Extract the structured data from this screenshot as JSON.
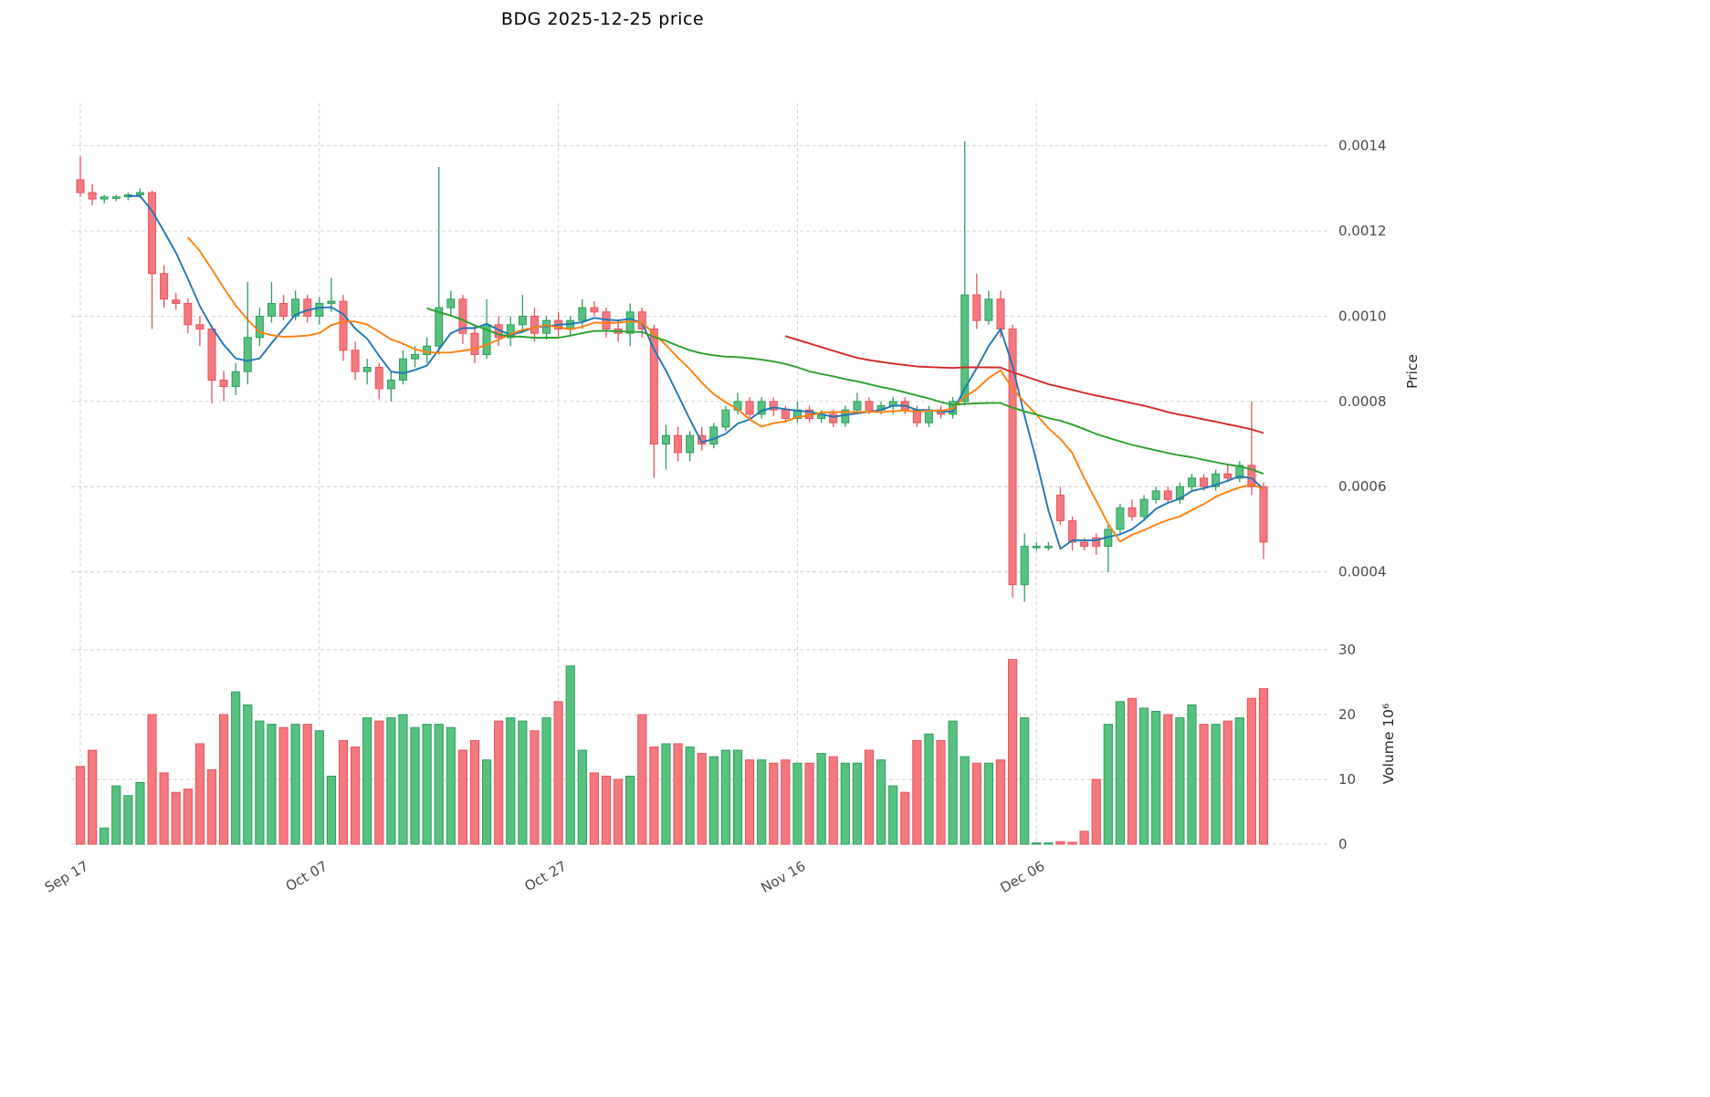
{
  "chart_data": {
    "type": "candlestick_volume",
    "title": "BDG  2025-12-25  price",
    "price_axis_label": "Price",
    "volume_axis_label": "Volume  10⁶",
    "volume_unit": 1000000,
    "price_ticks": [
      "0.0004",
      "0.0006",
      "0.0008",
      "0.0010",
      "0.0012",
      "0.0014"
    ],
    "price_tick_values": [
      0.0004,
      0.0006,
      0.0008,
      0.001,
      0.0012,
      0.0014
    ],
    "volume_ticks": [
      "0",
      "10",
      "20",
      "30"
    ],
    "volume_tick_values": [
      0,
      10,
      20,
      30
    ],
    "x_ticks": [
      "Sep 17",
      "Oct 07",
      "Oct 27",
      "Nov 16",
      "Dec 06"
    ],
    "x_tick_indices": [
      0,
      20,
      40,
      60,
      80
    ],
    "price_range": [
      0.00026,
      0.0015
    ],
    "volume_range": [
      0,
      30
    ],
    "grid": true,
    "colors": {
      "up_fill": "#57c17f",
      "up_edge": "#2f9d5f",
      "down_fill": "#f3797f",
      "down_edge": "#e8525e",
      "ma_fast": "#1f77b4",
      "ma_mid": "#ff7f0e",
      "ma_slow": "#2ca02c",
      "ma_long": "#d62728",
      "grid": "#cfcfcf",
      "tick_text": "#4a4a4a"
    },
    "moving_averages": [
      {
        "name": "MA5",
        "window": 5,
        "color": "#1f77b4"
      },
      {
        "name": "MA10",
        "window": 10,
        "color": "#ff7f0e"
      },
      {
        "name": "MA30",
        "window": 30,
        "color": "#2ca02c"
      },
      {
        "name": "MA60",
        "window": 60,
        "color": "#d62728"
      }
    ],
    "candles_format": [
      "date",
      "open",
      "high",
      "low",
      "close",
      "volume_millions"
    ],
    "candles": [
      [
        "2025-09-17",
        0.00132,
        0.001375,
        0.00128,
        0.00129,
        12.0
      ],
      [
        "2025-09-18",
        0.00129,
        0.00131,
        0.00126,
        0.001275,
        14.5
      ],
      [
        "2025-09-19",
        0.001275,
        0.001285,
        0.001265,
        0.00128,
        2.5
      ],
      [
        "2025-09-20",
        0.00128,
        0.001285,
        0.00127,
        0.00128,
        9.0
      ],
      [
        "2025-09-21",
        0.00128,
        0.00129,
        0.001272,
        0.001285,
        7.5
      ],
      [
        "2025-09-22",
        0.001285,
        0.0013,
        0.001278,
        0.00129,
        9.5
      ],
      [
        "2025-09-23",
        0.00129,
        0.001295,
        0.00097,
        0.0011,
        20.0
      ],
      [
        "2025-09-24",
        0.0011,
        0.00112,
        0.00102,
        0.00104,
        11.0
      ],
      [
        "2025-09-25",
        0.001038,
        0.001055,
        0.001015,
        0.00103,
        8.0
      ],
      [
        "2025-09-26",
        0.00103,
        0.001042,
        0.00096,
        0.00098,
        8.5
      ],
      [
        "2025-09-27",
        0.00098,
        0.001,
        0.00093,
        0.00097,
        15.5
      ],
      [
        "2025-09-28",
        0.00097,
        0.00098,
        0.000795,
        0.00085,
        11.5
      ],
      [
        "2025-09-29",
        0.00085,
        0.000872,
        0.0008,
        0.000835,
        20.0
      ],
      [
        "2025-09-30",
        0.000835,
        0.00089,
        0.000815,
        0.00087,
        23.5
      ],
      [
        "2025-10-01",
        0.00087,
        0.00108,
        0.00084,
        0.00095,
        21.5
      ],
      [
        "2025-10-02",
        0.00095,
        0.00102,
        0.00093,
        0.001,
        19.0
      ],
      [
        "2025-10-03",
        0.001,
        0.00108,
        0.000985,
        0.00103,
        18.5
      ],
      [
        "2025-10-04",
        0.00103,
        0.00105,
        0.00099,
        0.001,
        18.0
      ],
      [
        "2025-10-05",
        0.001,
        0.00106,
        0.00099,
        0.00104,
        18.5
      ],
      [
        "2025-10-06",
        0.00104,
        0.00105,
        0.000985,
        0.001,
        18.5
      ],
      [
        "2025-10-07",
        0.001,
        0.001045,
        0.00098,
        0.00103,
        17.5
      ],
      [
        "2025-10-08",
        0.00103,
        0.00109,
        0.00101,
        0.001035,
        10.5
      ],
      [
        "2025-10-09",
        0.001035,
        0.00105,
        0.000895,
        0.00092,
        16.0
      ],
      [
        "2025-10-10",
        0.00092,
        0.00094,
        0.00085,
        0.00087,
        15.0
      ],
      [
        "2025-10-11",
        0.00087,
        0.0009,
        0.00084,
        0.00088,
        19.5
      ],
      [
        "2025-10-12",
        0.00088,
        0.00089,
        0.000805,
        0.00083,
        19.0
      ],
      [
        "2025-10-13",
        0.00083,
        0.00087,
        0.0008,
        0.00085,
        19.5
      ],
      [
        "2025-10-14",
        0.00085,
        0.00092,
        0.00084,
        0.0009,
        20.0
      ],
      [
        "2025-10-15",
        0.0009,
        0.00093,
        0.00088,
        0.00091,
        18.0
      ],
      [
        "2025-10-16",
        0.00091,
        0.00095,
        0.00089,
        0.00093,
        18.5
      ],
      [
        "2025-10-17",
        0.00093,
        0.00135,
        0.00091,
        0.00102,
        18.5
      ],
      [
        "2025-10-18",
        0.00102,
        0.00106,
        0.001,
        0.00104,
        18.0
      ],
      [
        "2025-10-19",
        0.00104,
        0.00105,
        0.000935,
        0.00096,
        14.5
      ],
      [
        "2025-10-20",
        0.00096,
        0.00098,
        0.00089,
        0.00091,
        16.0
      ],
      [
        "2025-10-21",
        0.00091,
        0.00104,
        0.0009,
        0.00098,
        13.0
      ],
      [
        "2025-10-22",
        0.00098,
        0.001,
        0.00093,
        0.00095,
        19.0
      ],
      [
        "2025-10-23",
        0.00095,
        0.001,
        0.00093,
        0.00098,
        19.5
      ],
      [
        "2025-10-24",
        0.00098,
        0.00105,
        0.00096,
        0.001,
        19.0
      ],
      [
        "2025-10-25",
        0.001,
        0.00102,
        0.00094,
        0.00096,
        17.5
      ],
      [
        "2025-10-26",
        0.00096,
        0.001,
        0.000945,
        0.00099,
        19.5
      ],
      [
        "2025-10-27",
        0.00099,
        0.00101,
        0.00095,
        0.00097,
        22.0
      ],
      [
        "2025-10-28",
        0.00097,
        0.001,
        0.000955,
        0.00099,
        27.5
      ],
      [
        "2025-10-29",
        0.00099,
        0.00104,
        0.00097,
        0.00102,
        14.5
      ],
      [
        "2025-10-30",
        0.00102,
        0.001035,
        0.001,
        0.00101,
        11.0
      ],
      [
        "2025-10-31",
        0.00101,
        0.00102,
        0.00095,
        0.00097,
        10.5
      ],
      [
        "2025-11-01",
        0.00097,
        0.00099,
        0.00094,
        0.00096,
        10.0
      ],
      [
        "2025-11-02",
        0.00096,
        0.00103,
        0.00093,
        0.00101,
        10.5
      ],
      [
        "2025-11-03",
        0.00101,
        0.00102,
        0.00095,
        0.00097,
        20.0
      ],
      [
        "2025-11-04",
        0.00097,
        0.00098,
        0.00062,
        0.0007,
        15.0
      ],
      [
        "2025-11-05",
        0.0007,
        0.000745,
        0.00064,
        0.00072,
        15.5
      ],
      [
        "2025-11-06",
        0.00072,
        0.00074,
        0.00066,
        0.00068,
        15.5
      ],
      [
        "2025-11-07",
        0.00068,
        0.00073,
        0.00066,
        0.00072,
        15.0
      ],
      [
        "2025-11-08",
        0.00072,
        0.00074,
        0.000685,
        0.0007,
        14.0
      ],
      [
        "2025-11-09",
        0.0007,
        0.00075,
        0.00069,
        0.00074,
        13.5
      ],
      [
        "2025-11-10",
        0.00074,
        0.00079,
        0.00073,
        0.00078,
        14.5
      ],
      [
        "2025-11-11",
        0.00078,
        0.00082,
        0.00077,
        0.0008,
        14.5
      ],
      [
        "2025-11-12",
        0.0008,
        0.00081,
        0.00076,
        0.00077,
        13.0
      ],
      [
        "2025-11-13",
        0.00077,
        0.00081,
        0.00076,
        0.0008,
        13.0
      ],
      [
        "2025-11-14",
        0.0008,
        0.00081,
        0.000765,
        0.00078,
        12.5
      ],
      [
        "2025-11-15",
        0.00078,
        0.00079,
        0.00075,
        0.00076,
        13.0
      ],
      [
        "2025-11-16",
        0.00076,
        0.0008,
        0.00075,
        0.00078,
        12.5
      ],
      [
        "2025-11-17",
        0.00078,
        0.00079,
        0.00075,
        0.00076,
        12.5
      ],
      [
        "2025-11-18",
        0.00076,
        0.00078,
        0.00075,
        0.00077,
        14.0
      ],
      [
        "2025-11-19",
        0.00077,
        0.00078,
        0.00074,
        0.00075,
        13.5
      ],
      [
        "2025-11-20",
        0.00075,
        0.00079,
        0.00074,
        0.00078,
        12.5
      ],
      [
        "2025-11-21",
        0.00078,
        0.00082,
        0.00077,
        0.0008,
        12.5
      ],
      [
        "2025-11-22",
        0.0008,
        0.00081,
        0.00077,
        0.00078,
        14.5
      ],
      [
        "2025-11-23",
        0.00078,
        0.0008,
        0.00077,
        0.00079,
        13.0
      ],
      [
        "2025-11-24",
        0.00079,
        0.00081,
        0.00077,
        0.0008,
        9.0
      ],
      [
        "2025-11-25",
        0.0008,
        0.00081,
        0.00077,
        0.00078,
        8.0
      ],
      [
        "2025-11-26",
        0.00078,
        0.00079,
        0.00074,
        0.00075,
        16.0
      ],
      [
        "2025-11-27",
        0.00075,
        0.00079,
        0.00074,
        0.00078,
        17.0
      ],
      [
        "2025-11-28",
        0.00078,
        0.00079,
        0.00076,
        0.00077,
        16.0
      ],
      [
        "2025-11-29",
        0.00077,
        0.00081,
        0.00076,
        0.0008,
        19.0
      ],
      [
        "2025-11-30",
        0.0008,
        0.00141,
        0.00079,
        0.00105,
        13.5
      ],
      [
        "2025-12-01",
        0.00105,
        0.0011,
        0.00097,
        0.00099,
        12.5
      ],
      [
        "2025-12-02",
        0.00099,
        0.00106,
        0.00098,
        0.00104,
        12.5
      ],
      [
        "2025-12-03",
        0.00104,
        0.00106,
        0.00095,
        0.00097,
        13.0
      ],
      [
        "2025-12-04",
        0.00097,
        0.00098,
        0.00034,
        0.00037,
        28.5
      ],
      [
        "2025-12-05",
        0.00037,
        0.00049,
        0.00033,
        0.00046,
        19.5
      ],
      [
        "2025-12-06",
        0.00046,
        0.00047,
        0.00045,
        0.00046,
        0.2
      ],
      [
        "2025-12-07",
        0.00046,
        0.00047,
        0.00045,
        0.00046,
        0.2
      ],
      [
        "2025-12-08",
        0.00058,
        0.0006,
        0.00051,
        0.00052,
        0.4
      ],
      [
        "2025-12-09",
        0.00052,
        0.00053,
        0.00045,
        0.00047,
        0.3
      ],
      [
        "2025-12-10",
        0.00047,
        0.00048,
        0.00045,
        0.00046,
        2.0
      ],
      [
        "2025-12-11",
        0.00048,
        0.00049,
        0.00044,
        0.00046,
        10.0
      ],
      [
        "2025-12-12",
        0.00046,
        0.00051,
        0.0004,
        0.0005,
        18.5
      ],
      [
        "2025-12-13",
        0.0005,
        0.00056,
        0.00049,
        0.00055,
        22.0
      ],
      [
        "2025-12-14",
        0.00055,
        0.00057,
        0.00052,
        0.00053,
        22.5
      ],
      [
        "2025-12-15",
        0.00053,
        0.00058,
        0.00052,
        0.00057,
        21.0
      ],
      [
        "2025-12-16",
        0.00057,
        0.0006,
        0.00056,
        0.00059,
        20.5
      ],
      [
        "2025-12-17",
        0.00059,
        0.0006,
        0.00056,
        0.00057,
        20.0
      ],
      [
        "2025-12-18",
        0.00057,
        0.00061,
        0.00056,
        0.0006,
        19.5
      ],
      [
        "2025-12-19",
        0.0006,
        0.00063,
        0.00059,
        0.00062,
        21.5
      ],
      [
        "2025-12-20",
        0.00062,
        0.00063,
        0.00059,
        0.0006,
        18.5
      ],
      [
        "2025-12-21",
        0.0006,
        0.00064,
        0.00059,
        0.00063,
        18.5
      ],
      [
        "2025-12-22",
        0.00063,
        0.00065,
        0.00061,
        0.00062,
        19.0
      ],
      [
        "2025-12-23",
        0.00062,
        0.00066,
        0.00061,
        0.00065,
        19.5
      ],
      [
        "2025-12-24",
        0.00065,
        0.0008,
        0.00058,
        0.0006,
        22.5
      ],
      [
        "2025-12-25",
        0.0006,
        0.00061,
        0.00043,
        0.00047,
        24.0
      ]
    ]
  }
}
